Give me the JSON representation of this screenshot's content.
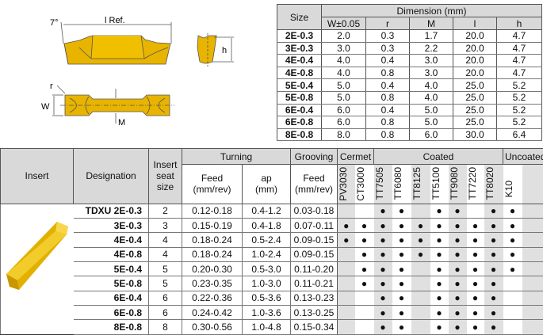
{
  "diagram": {
    "angle_label": "7°",
    "length_label": "l Ref.",
    "height_label": "h",
    "radius_label": "r",
    "width_label": "W",
    "m_label": "M"
  },
  "dimension_table": {
    "size_header": "Size",
    "group_header": "Dimension (mm)",
    "columns": [
      "W±0.05",
      "r",
      "M",
      "l",
      "h"
    ],
    "rows": [
      {
        "size": "2E-0.3",
        "values": [
          "2.0",
          "0.3",
          "1.7",
          "20.0",
          "4.7"
        ]
      },
      {
        "size": "3E-0.3",
        "values": [
          "3.0",
          "0.3",
          "2.2",
          "20.0",
          "4.7"
        ]
      },
      {
        "size": "4E-0.4",
        "values": [
          "4.0",
          "0.4",
          "3.0",
          "20.0",
          "4.7"
        ]
      },
      {
        "size": "4E-0.8",
        "values": [
          "4.0",
          "0.8",
          "3.0",
          "20.0",
          "4.7"
        ]
      },
      {
        "size": "5E-0.4",
        "values": [
          "5.0",
          "0.4",
          "4.0",
          "25.0",
          "5.2"
        ]
      },
      {
        "size": "5E-0.8",
        "values": [
          "5.0",
          "0.8",
          "4.0",
          "25.0",
          "5.2"
        ]
      },
      {
        "size": "6E-0.4",
        "values": [
          "6.0",
          "0.4",
          "5.0",
          "25.0",
          "5.2"
        ]
      },
      {
        "size": "6E-0.8",
        "values": [
          "6.0",
          "0.8",
          "5.0",
          "25.0",
          "5.2"
        ]
      },
      {
        "size": "8E-0.8",
        "values": [
          "8.0",
          "0.8",
          "6.0",
          "30.0",
          "6.4"
        ]
      }
    ]
  },
  "grade_table": {
    "headers": {
      "insert": "Insert",
      "designation": "Designation",
      "seat": "Insert seat size",
      "turning": "Turning",
      "grooving": "Grooving",
      "turn_feed": "Feed (mm/rev)",
      "turn_ap": "ap (mm)",
      "groove_feed": "Feed (mm/rev)",
      "cermet": "Cermet",
      "coated": "Coated",
      "uncoated": "Uncoated"
    },
    "prefix": "TDXU",
    "grades": [
      "PV3030",
      "CT3000",
      "TT7505",
      "TT6080",
      "TT8125",
      "TT5100",
      "TT9080",
      "TT7220",
      "TT8020",
      "K10"
    ],
    "dot": "●",
    "rows": [
      {
        "designation": "2E-0.3",
        "seat": "2",
        "turn_feed": "0.12-0.18",
        "ap": "0.4-1.2",
        "groove_feed": "0.03-0.18",
        "grades": [
          0,
          0,
          1,
          1,
          0,
          1,
          1,
          0,
          1,
          1
        ]
      },
      {
        "designation": "3E-0.3",
        "seat": "3",
        "turn_feed": "0.15-0.19",
        "ap": "0.4-1.8",
        "groove_feed": "0.07-0.11",
        "grades": [
          1,
          1,
          1,
          1,
          1,
          1,
          1,
          1,
          1,
          1
        ]
      },
      {
        "designation": "4E-0.4",
        "seat": "4",
        "turn_feed": "0.18-0.24",
        "ap": "0.5-2.4",
        "groove_feed": "0.09-0.15",
        "grades": [
          1,
          1,
          1,
          1,
          1,
          1,
          1,
          1,
          1,
          1
        ]
      },
      {
        "designation": "4E-0.8",
        "seat": "4",
        "turn_feed": "0.18-0.24",
        "ap": "1.0-2.4",
        "groove_feed": "0.09-0.15",
        "grades": [
          0,
          1,
          1,
          1,
          1,
          1,
          1,
          1,
          1,
          1
        ]
      },
      {
        "designation": "5E-0.4",
        "seat": "5",
        "turn_feed": "0.20-0.30",
        "ap": "0.5-3.0",
        "groove_feed": "0.11-0.20",
        "grades": [
          0,
          1,
          1,
          1,
          0,
          1,
          1,
          1,
          1,
          1
        ]
      },
      {
        "designation": "5E-0.8",
        "seat": "5",
        "turn_feed": "0.23-0.35",
        "ap": "1.0-3.0",
        "groove_feed": "0.11-0.21",
        "grades": [
          0,
          1,
          1,
          1,
          0,
          1,
          1,
          1,
          1,
          0
        ]
      },
      {
        "designation": "6E-0.4",
        "seat": "6",
        "turn_feed": "0.22-0.36",
        "ap": "0.5-3.6",
        "groove_feed": "0.13-0.23",
        "grades": [
          0,
          0,
          1,
          1,
          0,
          1,
          1,
          1,
          1,
          0
        ]
      },
      {
        "designation": "6E-0.8",
        "seat": "6",
        "turn_feed": "0.24-0.42",
        "ap": "1.0-3.6",
        "groove_feed": "0.13-0.25",
        "grades": [
          0,
          0,
          1,
          1,
          0,
          1,
          1,
          1,
          1,
          0
        ]
      },
      {
        "designation": "8E-0.8",
        "seat": "8",
        "turn_feed": "0.30-0.56",
        "ap": "1.0-4.8",
        "groove_feed": "0.15-0.34",
        "grades": [
          0,
          0,
          1,
          1,
          0,
          1,
          1,
          1,
          1,
          0
        ]
      }
    ]
  },
  "colors": {
    "insert_gold": "#e8b400",
    "header_gray": "#d9d9d9"
  }
}
